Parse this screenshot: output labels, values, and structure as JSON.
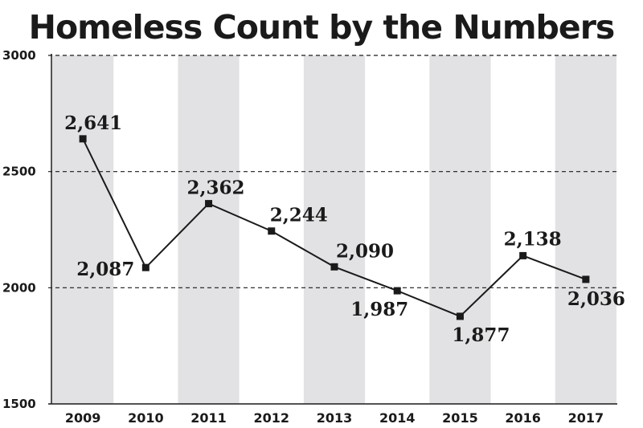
{
  "chart_data": {
    "type": "line",
    "title": "Homeless Count by the Numbers",
    "categories": [
      "2009",
      "2010",
      "2011",
      "2012",
      "2013",
      "2014",
      "2015",
      "2016",
      "2017"
    ],
    "values": [
      2641,
      2087,
      2362,
      2244,
      2090,
      1987,
      1877,
      2138,
      2036
    ],
    "data_labels": [
      "2,641",
      "2,087",
      "2,362",
      "2,244",
      "2,090",
      "1,987",
      "1,877",
      "2,138",
      "2,036"
    ],
    "yticks": [
      1500,
      2000,
      2500,
      3000
    ],
    "ylim": [
      1500,
      3000
    ],
    "xlabel": "",
    "ylabel": "",
    "grid": "dashed horizontal",
    "colors": {
      "band": "#e2e2e4",
      "line": "#1a1a1a",
      "text": "#1a1a1a"
    }
  }
}
